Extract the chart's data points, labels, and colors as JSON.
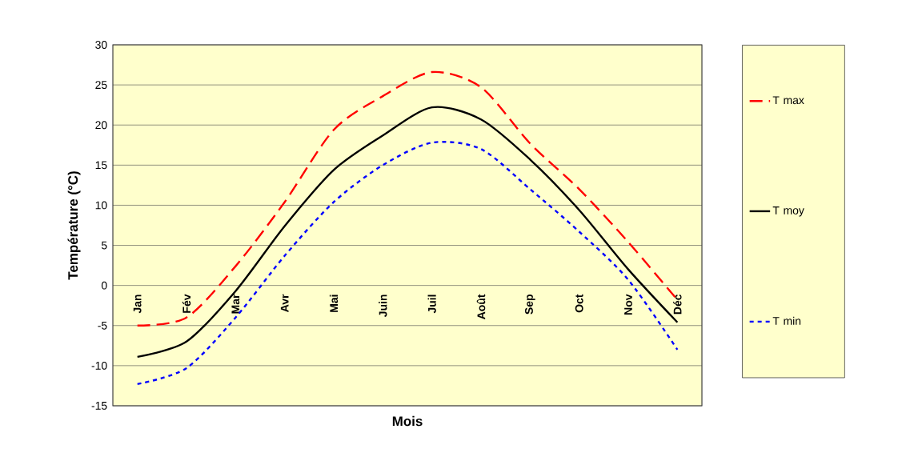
{
  "chart_data": {
    "type": "line",
    "xlabel": "Mois",
    "ylabel": "Température (°C)",
    "categories": [
      "Jan",
      "Fév",
      "Mar",
      "Avr",
      "Mai",
      "Juin",
      "Juil",
      "Août",
      "Sep",
      "Oct",
      "Nov",
      "Déc"
    ],
    "series": [
      {
        "name": "T max",
        "color": "#ff0000",
        "line_style": "dashed",
        "values": [
          -5.0,
          -4.0,
          2.4,
          10.4,
          19.4,
          23.6,
          26.6,
          24.7,
          17.7,
          12.0,
          5.4,
          -1.8
        ]
      },
      {
        "name": "T moy",
        "color": "#000000",
        "line_style": "solid",
        "values": [
          -8.9,
          -7.0,
          -0.7,
          7.4,
          14.4,
          18.7,
          22.2,
          20.7,
          15.7,
          9.4,
          2.0,
          -4.6
        ]
      },
      {
        "name": "T min",
        "color": "#0000ff",
        "line_style": "dotted",
        "values": [
          -12.3,
          -10.3,
          -4.0,
          3.7,
          10.4,
          15.0,
          17.8,
          17.0,
          12.0,
          6.7,
          0.7,
          -8.0
        ]
      }
    ],
    "ylim": [
      -15,
      30
    ],
    "yticks": [
      -15,
      -10,
      -5,
      0,
      5,
      10,
      15,
      20,
      25,
      30
    ],
    "grid": "y",
    "legend": "right"
  }
}
